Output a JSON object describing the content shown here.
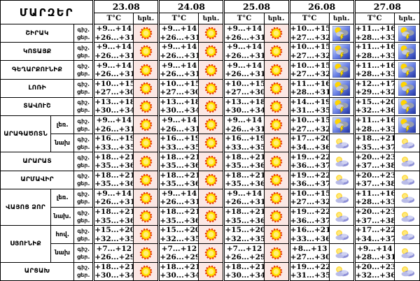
{
  "chart_data": {
    "type": "table",
    "title": "ՄԱՐԶԵՐ",
    "dates": [
      "23.08",
      "24.08",
      "25.08",
      "26.08",
      "27.08"
    ],
    "temp_col": "T°C",
    "icon_col": "երև.",
    "labels": {
      "night": "գիշ.",
      "day": "ցեր."
    },
    "icon_names": {
      "sun": "sun-icon",
      "storm": "thunderstorm-icon",
      "cloud": "sun-cloud-icon"
    },
    "colors": {
      "icon_cell_pink": "#fbe7e4",
      "storm_bg_blue": "#1c2fa0",
      "sun_yellow": "#ffe400",
      "sun_ring_orange": "#e83800"
    },
    "regions": [
      {
        "name": "ՇԻՐԱԿ",
        "sections": [
          {
            "sub": "",
            "cells": [
              {
                "night": "+9...+14",
                "day": "+26...+31",
                "icon": "sun"
              },
              {
                "night": "+9...+14",
                "day": "+26...+31",
                "icon": "sun"
              },
              {
                "night": "+9...+14",
                "day": "+26...+31",
                "icon": "sun"
              },
              {
                "night": "+10...+15",
                "day": "+27...+32",
                "icon": "storm"
              },
              {
                "night": "+11...+16",
                "day": "+28...+33",
                "icon": "storm"
              }
            ]
          }
        ]
      },
      {
        "name": "ԿՈՏԱՅՔ",
        "sections": [
          {
            "sub": "",
            "cells": [
              {
                "night": "+9...+14",
                "day": "+26...+31",
                "icon": "sun"
              },
              {
                "night": "+9...+14",
                "day": "+26...+31",
                "icon": "sun"
              },
              {
                "night": "+9...+14",
                "day": "+26...+31",
                "icon": "sun"
              },
              {
                "night": "+10...+15",
                "day": "+27...+32",
                "icon": "storm"
              },
              {
                "night": "+11...+16",
                "day": "+28...+33",
                "icon": "storm"
              }
            ]
          }
        ]
      },
      {
        "name": "ԳԵՂԱՐՔՈՒՆԻՔ",
        "sections": [
          {
            "sub": "",
            "cells": [
              {
                "night": "+9...+14",
                "day": "+26...+31",
                "icon": "sun"
              },
              {
                "night": "+9...+14",
                "day": "+26...+31",
                "icon": "sun"
              },
              {
                "night": "+9...+14",
                "day": "+26...+31",
                "icon": "sun"
              },
              {
                "night": "+10...+15",
                "day": "+27...+32",
                "icon": "storm"
              },
              {
                "night": "+11...+16",
                "day": "+28...+33",
                "icon": "storm"
              }
            ]
          }
        ]
      },
      {
        "name": "ԼՈՌԻ",
        "sections": [
          {
            "sub": "",
            "cells": [
              {
                "night": "+10...+15",
                "day": "+27...+30",
                "icon": "sun"
              },
              {
                "night": "+10...+15",
                "day": "+27...+30",
                "icon": "sun"
              },
              {
                "night": "+10...+15",
                "day": "+27...+30",
                "icon": "sun"
              },
              {
                "night": "+11...+16",
                "day": "+28...+31",
                "icon": "storm"
              },
              {
                "night": "+12...+17",
                "day": "+29...+32",
                "icon": "storm"
              }
            ]
          }
        ]
      },
      {
        "name": "ՏԱՎՈՒՇ",
        "sections": [
          {
            "sub": "",
            "cells": [
              {
                "night": "+13...+18",
                "day": "+30...+34",
                "icon": "sun"
              },
              {
                "night": "+13...+18",
                "day": "+30...+34",
                "icon": "sun"
              },
              {
                "night": "+13...+18",
                "day": "+30...+34",
                "icon": "sun"
              },
              {
                "night": "+14...+19",
                "day": "+31...+35",
                "icon": "storm"
              },
              {
                "night": "+15...+20",
                "day": "+32...+36",
                "icon": "storm"
              }
            ]
          }
        ]
      },
      {
        "name": "ԱՐԱԳԱԾՈՏՆ",
        "sections": [
          {
            "sub": "լեռ.",
            "cells": [
              {
                "night": "+9...+14",
                "day": "+26...+31",
                "icon": "sun"
              },
              {
                "night": "+9...+14",
                "day": "+26...+31",
                "icon": "sun"
              },
              {
                "night": "+9...+14",
                "day": "+26...+31",
                "icon": "sun"
              },
              {
                "night": "+10...+15",
                "day": "+27...+32",
                "icon": "storm"
              },
              {
                "night": "+11...+16",
                "day": "+28...+33",
                "icon": "storm"
              }
            ]
          },
          {
            "sub": "նախ",
            "cells": [
              {
                "night": "+16...+19",
                "day": "+33...+35",
                "icon": "sun"
              },
              {
                "night": "+16...+19",
                "day": "+33...+35",
                "icon": "sun"
              },
              {
                "night": "+16...+19",
                "day": "+33...+35",
                "icon": "sun"
              },
              {
                "night": "+17...+20",
                "day": "+34...+36",
                "icon": "cloud"
              },
              {
                "night": "+18...+21",
                "day": "+35...+37",
                "icon": "cloud"
              }
            ]
          }
        ]
      },
      {
        "name": "ԱՐԱՐԱՏ",
        "sections": [
          {
            "sub": "",
            "cells": [
              {
                "night": "+18...+21",
                "day": "+35...+36",
                "icon": "sun"
              },
              {
                "night": "+18...+21",
                "day": "+35...+36",
                "icon": "sun"
              },
              {
                "night": "+18...+21",
                "day": "+35...+36",
                "icon": "sun"
              },
              {
                "night": "+19...+22",
                "day": "+36...+37",
                "icon": "cloud"
              },
              {
                "night": "+20...+23",
                "day": "+37...+38",
                "icon": "cloud"
              }
            ]
          }
        ]
      },
      {
        "name": "ԱՐՄԱՎԻՐ",
        "sections": [
          {
            "sub": "",
            "cells": [
              {
                "night": "+18...+21",
                "day": "+35...+36",
                "icon": "sun"
              },
              {
                "night": "+18...+21",
                "day": "+35...+36",
                "icon": "sun"
              },
              {
                "night": "+18...+21",
                "day": "+35...+36",
                "icon": "sun"
              },
              {
                "night": "+19...+22",
                "day": "+36...+37",
                "icon": "cloud"
              },
              {
                "night": "+20...+23",
                "day": "+37...+38",
                "icon": "cloud"
              }
            ]
          }
        ]
      },
      {
        "name": "ՎԱՅՈՑ ՁՈՐ",
        "sections": [
          {
            "sub": "լեռ.",
            "cells": [
              {
                "night": "+9...+14",
                "day": "+26...+31",
                "icon": "sun"
              },
              {
                "night": "+9...+14",
                "day": "+26...+31",
                "icon": "sun"
              },
              {
                "night": "+9...+14",
                "day": "+26...+31",
                "icon": "sun"
              },
              {
                "night": "+10...+15",
                "day": "+27...+32",
                "icon": "cloud"
              },
              {
                "night": "+11...+16",
                "day": "+28...+33",
                "icon": "cloud"
              }
            ]
          },
          {
            "sub": "նախ.",
            "cells": [
              {
                "night": "+18...+21",
                "day": "+35...+36",
                "icon": "sun"
              },
              {
                "night": "+18...+21",
                "day": "+35...+36",
                "icon": "sun"
              },
              {
                "night": "+18...+21",
                "day": "+35...+36",
                "icon": "sun"
              },
              {
                "night": "+19...+22",
                "day": "+36...+37",
                "icon": "cloud"
              },
              {
                "night": "+20...+23",
                "day": "+37...+38",
                "icon": "cloud"
              }
            ]
          }
        ]
      },
      {
        "name": "ՍՅՈՒՆԻՔ",
        "sections": [
          {
            "sub": "հով.",
            "cells": [
              {
                "night": "+15...+20",
                "day": "+32...+35",
                "icon": "sun"
              },
              {
                "night": "+15...+20",
                "day": "+32...+35",
                "icon": "sun"
              },
              {
                "night": "+15...+20",
                "day": "+32...+35",
                "icon": "sun"
              },
              {
                "night": "+16...+21",
                "day": "+33...+36",
                "icon": "cloud"
              },
              {
                "night": "+17...+22",
                "day": "+34...+37",
                "icon": "cloud"
              }
            ]
          },
          {
            "sub": "նախ",
            "cells": [
              {
                "night": "+7...+12",
                "day": "+26...+29",
                "icon": "sun"
              },
              {
                "night": "+7...+12",
                "day": "+26...+29",
                "icon": "sun"
              },
              {
                "night": "+7...+12",
                "day": "+26...+29",
                "icon": "sun"
              },
              {
                "night": "+8...+13",
                "day": "+27...+30",
                "icon": "cloud"
              },
              {
                "night": "+9...+14",
                "day": "+28...+31",
                "icon": "cloud"
              }
            ]
          }
        ]
      },
      {
        "name": "ԱՐՑԱԽ",
        "sections": [
          {
            "sub": "",
            "cells": [
              {
                "night": "+18...+21",
                "day": "+30...+34",
                "icon": "sun"
              },
              {
                "night": "+18...+21",
                "day": "+30...+34",
                "icon": "sun"
              },
              {
                "night": "+18...+21",
                "day": "+30...+34",
                "icon": "sun"
              },
              {
                "night": "+19...+22",
                "day": "+31...+35",
                "icon": "cloud"
              },
              {
                "night": "+20...+23",
                "day": "+32...+36",
                "icon": "cloud"
              }
            ]
          }
        ]
      }
    ]
  }
}
